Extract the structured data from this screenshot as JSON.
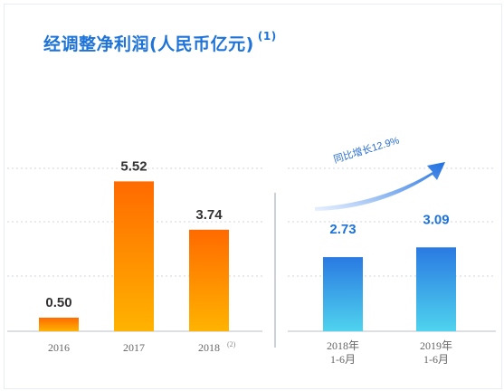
{
  "title": "经调整净利润(人民币亿元)",
  "title_note": "(1)",
  "growth_label": "同比增长12.9%",
  "colors": {
    "title": "#1e73d8",
    "annual_top": "#ff6a00",
    "annual_bottom": "#ffb300",
    "half_top": "#2a7ae2",
    "half_bottom": "#4fd3ee",
    "arrow_start": "#e8f1ff",
    "arrow_end": "#1f6fe0",
    "grid": "#cfd6e2"
  },
  "chart_data": [
    {
      "type": "bar",
      "categories": [
        "2016",
        "2017",
        "2018"
      ],
      "category_notes": [
        "",
        "",
        "(2)"
      ],
      "values": [
        0.5,
        5.52,
        3.74
      ],
      "value_labels": [
        "0.50",
        "5.52",
        "3.74"
      ],
      "ylim": [
        0,
        6.2
      ],
      "grid": true
    },
    {
      "type": "bar",
      "categories": [
        [
          "2018年",
          "1-6月"
        ],
        [
          "2019年",
          "1-6月"
        ]
      ],
      "values": [
        2.73,
        3.09
      ],
      "value_labels": [
        "2.73",
        "3.09"
      ],
      "annotation": "同比增长12.9%",
      "ylim": [
        0,
        6.2
      ],
      "grid": true
    }
  ]
}
